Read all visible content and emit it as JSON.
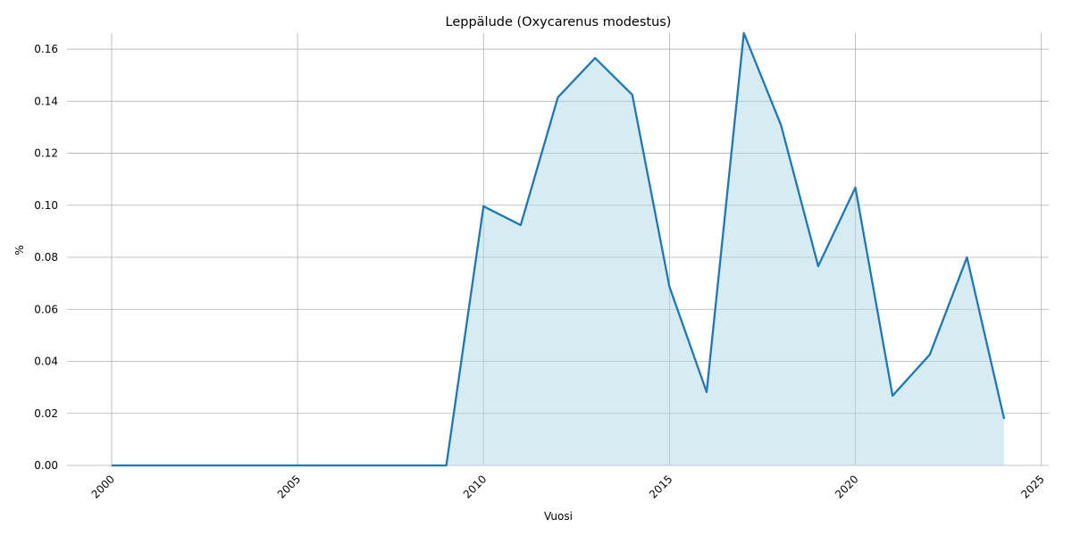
{
  "chart_data": {
    "type": "area",
    "title": "Leppälude (Oxycarenus modestus)",
    "xlabel": "Vuosi",
    "ylabel": "%",
    "x": [
      2000,
      2001,
      2002,
      2003,
      2004,
      2005,
      2006,
      2007,
      2008,
      2009,
      2010,
      2011,
      2012,
      2013,
      2014,
      2015,
      2016,
      2017,
      2018,
      2019,
      2020,
      2021,
      2022,
      2023,
      2024
    ],
    "values": [
      0,
      0,
      0,
      0,
      0,
      0,
      0,
      0,
      0,
      0,
      0.0996,
      0.0924,
      0.1415,
      0.1566,
      0.1425,
      0.0687,
      0.0282,
      0.1662,
      0.1308,
      0.0766,
      0.1068,
      0.0268,
      0.0426,
      0.08,
      0.0179
    ],
    "color": "#1f77b4",
    "fill_color": "#add8e6",
    "xlim": [
      1998.8,
      2025.2
    ],
    "ylim": [
      0,
      0.1662
    ],
    "xticks": [
      2000,
      2005,
      2010,
      2015,
      2020,
      2025
    ],
    "yticks": [
      {
        "value": 0,
        "label": "0.00"
      },
      {
        "value": 0.02,
        "label": "0.02"
      },
      {
        "value": 0.04,
        "label": "0.04"
      },
      {
        "value": 0.06,
        "label": "0.06"
      },
      {
        "value": 0.08,
        "label": "0.08"
      },
      {
        "value": 0.1,
        "label": "0.10"
      },
      {
        "value": 0.12,
        "label": "0.12"
      },
      {
        "value": 0.14,
        "label": "0.14"
      },
      {
        "value": 0.16,
        "label": "0.16"
      }
    ],
    "grid": true
  }
}
